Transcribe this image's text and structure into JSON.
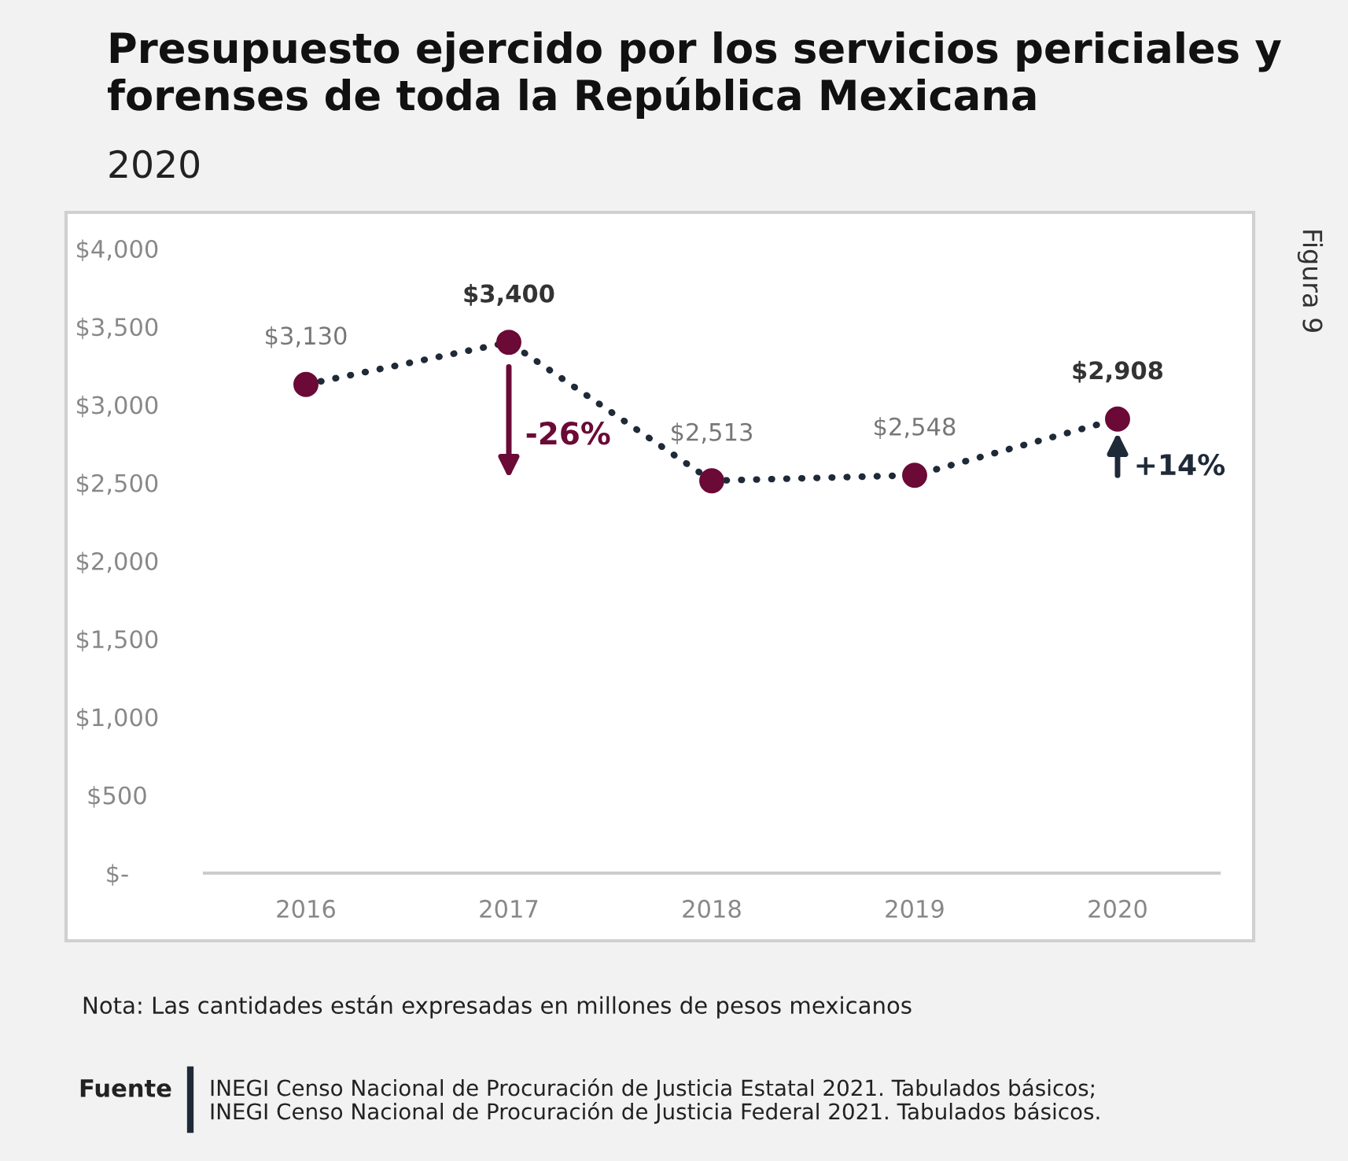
{
  "chart_data": {
    "type": "line",
    "title": "Presupuesto ejercido por los servicios periciales y\nforenses de toda la República Mexicana",
    "subtitle": "2020",
    "categories": [
      "2016",
      "2017",
      "2018",
      "2019",
      "2020"
    ],
    "series": [
      {
        "color": "#1f2a38",
        "colors": [
          "#6b0a36",
          "#6b0a36",
          "#6b0a36",
          "#6b0a36",
          "#6b0a36"
        ],
        "values": [
          3130,
          3400,
          2513,
          2548,
          2908
        ],
        "value_labels": [
          "$3,130",
          "$3,400",
          "$2,513",
          "$2,548",
          "$2,908"
        ]
      }
    ],
    "line_style": "dotted",
    "marker": "circle",
    "grid": false,
    "legend": false,
    "ylim": [
      0,
      4000
    ],
    "yticks": [
      {
        "value": 0,
        "label": "$-"
      },
      {
        "value": 500,
        "label": "$500"
      },
      {
        "value": 1000,
        "label": "$1,000"
      },
      {
        "value": 1500,
        "label": "$1,500"
      },
      {
        "value": 2000,
        "label": "$2,000"
      },
      {
        "value": 2500,
        "label": "$2,500"
      },
      {
        "value": 3000,
        "label": "$3,000"
      },
      {
        "value": 3500,
        "label": "$3,500"
      },
      {
        "value": 4000,
        "label": "$4,000"
      }
    ],
    "annotations": [
      "-26%",
      "+14%",
      "Figura 9",
      "Nota: Las cantidades están expresadas en millones de pesos mexicanos",
      "Fuente",
      "INEGI Censo Nacional de Procuración de Justicia Estatal 2021. Tabulados básicos;\nINEGI Censo Nacional de Procuración de Justicia Federal 2021. Tabulados básicos."
    ]
  }
}
